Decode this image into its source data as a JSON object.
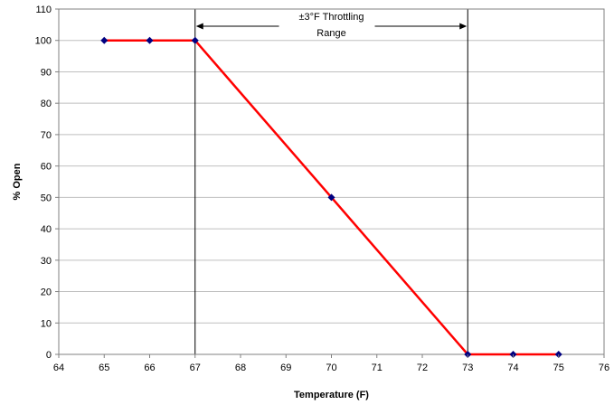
{
  "chart_data": {
    "type": "line",
    "title": "",
    "xlabel": "Temperature (F)",
    "ylabel": "% Open",
    "xlim": [
      64,
      76
    ],
    "ylim": [
      0,
      110
    ],
    "xticks": [
      "64",
      "65",
      "66",
      "67",
      "68",
      "69",
      "70",
      "71",
      "72",
      "73",
      "74",
      "75",
      "76"
    ],
    "yticks": [
      "0",
      "10",
      "20",
      "30",
      "40",
      "50",
      "60",
      "70",
      "80",
      "90",
      "100",
      "110"
    ],
    "grid": "horizontal",
    "series": [
      {
        "x": [
          65,
          66,
          67,
          70,
          73,
          74,
          75
        ],
        "y": [
          100,
          100,
          100,
          50,
          0,
          0,
          0
        ],
        "line_color": "#ff0000",
        "marker_color": "#000080"
      }
    ],
    "annotations": {
      "range_lines_x": [
        67,
        73
      ],
      "range_label_line1": "±3°F Throttling",
      "range_label_line2": "Range"
    }
  }
}
